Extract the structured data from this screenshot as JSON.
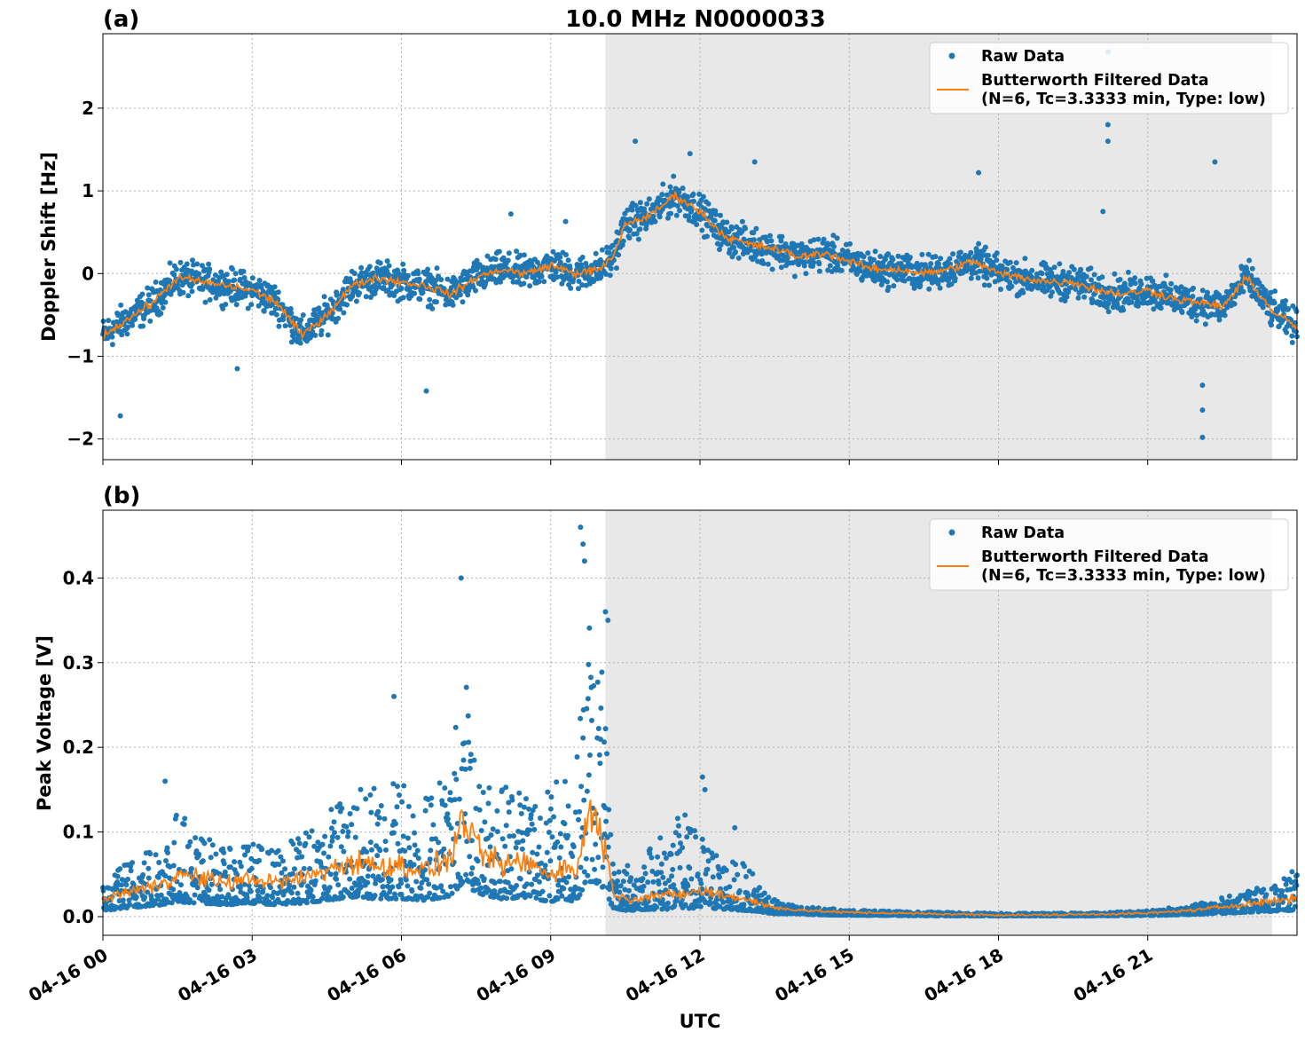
{
  "figure": {
    "title": "10.0 MHz N0000033",
    "xlabel": "UTC",
    "colors": {
      "raw": "#1f77b4",
      "filtered": "#ff7f0e",
      "shade": "#e8e8e8",
      "grid": "#b0b0b0"
    }
  },
  "chart_data": [
    {
      "type": "scatter",
      "panel_label": "(a)",
      "ylabel": "Doppler Shift [Hz]",
      "xlim": [
        0,
        24
      ],
      "ylim": [
        -2.25,
        2.9
      ],
      "yticks": [
        -2,
        -1,
        0,
        1,
        2
      ],
      "ytick_labels": [
        "−2",
        "−1",
        "0",
        "1",
        "2"
      ],
      "xticks": [
        0,
        3,
        6,
        9,
        12,
        15,
        18,
        21
      ],
      "shade_range": [
        10.1,
        23.5
      ],
      "grid": true,
      "legend_placement": "upper right",
      "legend": [
        "Raw Data",
        "Butterworth Filtered Data",
        "(N=6, Tc=3.3333 min, Type: low)"
      ],
      "series": [
        {
          "name": "Raw Data",
          "style": "points",
          "spread": 0.3
        },
        {
          "name": "Butterworth Filtered Data (N=6, Tc=3.3333 min, Type: low)",
          "style": "line"
        }
      ],
      "x": [
        0,
        0.5,
        1,
        1.5,
        2,
        2.5,
        3,
        3.5,
        4,
        4.5,
        5,
        5.5,
        6,
        6.5,
        7,
        7.5,
        8,
        8.5,
        9,
        9.5,
        10,
        10.25,
        10.5,
        11,
        11.5,
        12,
        12.5,
        13,
        13.5,
        14,
        14.5,
        15,
        15.5,
        16,
        16.5,
        17,
        17.5,
        18,
        18.5,
        19,
        19.5,
        20,
        20.5,
        21,
        21.5,
        22,
        22.5,
        23,
        23.5,
        24
      ],
      "filtered": [
        -0.75,
        -0.55,
        -0.35,
        -0.05,
        -0.1,
        -0.15,
        -0.2,
        -0.35,
        -0.75,
        -0.5,
        -0.15,
        -0.05,
        -0.1,
        -0.15,
        -0.25,
        -0.05,
        0.05,
        0.0,
        0.1,
        0.0,
        0.05,
        0.2,
        0.6,
        0.7,
        0.95,
        0.75,
        0.45,
        0.35,
        0.3,
        0.2,
        0.25,
        0.15,
        0.05,
        0.05,
        0.0,
        0.05,
        0.15,
        0.0,
        -0.05,
        -0.1,
        -0.1,
        -0.2,
        -0.25,
        -0.2,
        -0.3,
        -0.35,
        -0.4,
        -0.05,
        -0.45,
        -0.65
      ],
      "outliers": [
        [
          0.35,
          -1.72
        ],
        [
          2.7,
          -1.15
        ],
        [
          6.5,
          -1.42
        ],
        [
          8.2,
          0.72
        ],
        [
          9.3,
          0.63
        ],
        [
          10.7,
          1.6
        ],
        [
          11.8,
          1.45
        ],
        [
          13.1,
          1.35
        ],
        [
          17.6,
          1.22
        ],
        [
          20.1,
          0.75
        ],
        [
          20.2,
          2.68
        ],
        [
          20.2,
          1.8
        ],
        [
          20.2,
          1.6
        ],
        [
          22.1,
          -1.35
        ],
        [
          22.1,
          -1.65
        ],
        [
          22.1,
          -1.98
        ],
        [
          22.35,
          1.35
        ]
      ]
    },
    {
      "type": "scatter",
      "panel_label": "(b)",
      "ylabel": "Peak Voltage [V]",
      "xlim": [
        0,
        24
      ],
      "ylim": [
        -0.022,
        0.48
      ],
      "yticks": [
        0.0,
        0.1,
        0.2,
        0.3,
        0.4
      ],
      "ytick_labels": [
        "0.0",
        "0.1",
        "0.2",
        "0.3",
        "0.4"
      ],
      "xticks": [
        0,
        3,
        6,
        9,
        12,
        15,
        18,
        21
      ],
      "xtick_labels": [
        "04-16 00",
        "04-16 03",
        "04-16 06",
        "04-16 09",
        "04-16 12",
        "04-16 15",
        "04-16 18",
        "04-16 21"
      ],
      "shade_range": [
        10.1,
        23.5
      ],
      "grid": true,
      "legend_placement": "upper right",
      "legend": [
        "Raw Data",
        "Butterworth Filtered Data",
        "(N=6, Tc=3.3333 min, Type: low)"
      ],
      "series": [
        {
          "name": "Raw Data",
          "style": "points"
        },
        {
          "name": "Butterworth Filtered Data (N=6, Tc=3.3333 min, Type: low)",
          "style": "line"
        }
      ],
      "x": [
        0,
        0.5,
        1,
        1.5,
        2,
        2.5,
        3,
        3.5,
        4,
        4.5,
        5,
        5.5,
        6,
        6.5,
        7,
        7.25,
        7.5,
        8,
        8.5,
        9,
        9.25,
        9.5,
        9.75,
        10,
        10.25,
        10.5,
        11,
        11.5,
        12,
        12.5,
        13,
        13.5,
        14,
        14.5,
        15,
        16,
        17,
        18,
        19,
        20,
        21,
        22,
        23,
        24
      ],
      "filtered": [
        0.02,
        0.03,
        0.035,
        0.05,
        0.045,
        0.04,
        0.045,
        0.04,
        0.045,
        0.055,
        0.065,
        0.06,
        0.06,
        0.055,
        0.07,
        0.12,
        0.08,
        0.06,
        0.065,
        0.05,
        0.06,
        0.05,
        0.12,
        0.11,
        0.03,
        0.02,
        0.025,
        0.025,
        0.03,
        0.025,
        0.02,
        0.01,
        0.008,
        0.006,
        0.005,
        0.004,
        0.003,
        0.002,
        0.002,
        0.003,
        0.004,
        0.008,
        0.015,
        0.022
      ],
      "envelope_top": [
        0.04,
        0.07,
        0.09,
        0.13,
        0.1,
        0.08,
        0.09,
        0.08,
        0.1,
        0.13,
        0.15,
        0.16,
        0.18,
        0.15,
        0.19,
        0.33,
        0.16,
        0.17,
        0.18,
        0.15,
        0.2,
        0.17,
        0.38,
        0.33,
        0.07,
        0.06,
        0.09,
        0.12,
        0.1,
        0.07,
        0.06,
        0.02,
        0.012,
        0.01,
        0.008,
        0.006,
        0.005,
        0.004,
        0.004,
        0.005,
        0.007,
        0.015,
        0.03,
        0.05
      ],
      "outliers": [
        [
          1.25,
          0.16
        ],
        [
          5.85,
          0.26
        ],
        [
          7.2,
          0.4
        ],
        [
          9.6,
          0.46
        ],
        [
          9.65,
          0.44
        ],
        [
          9.68,
          0.42
        ],
        [
          10.1,
          0.36
        ],
        [
          10.15,
          0.35
        ],
        [
          12.05,
          0.165
        ],
        [
          12.1,
          0.15
        ],
        [
          11.7,
          0.12
        ],
        [
          12.7,
          0.105
        ],
        [
          23.9,
          0.053
        ]
      ]
    }
  ]
}
